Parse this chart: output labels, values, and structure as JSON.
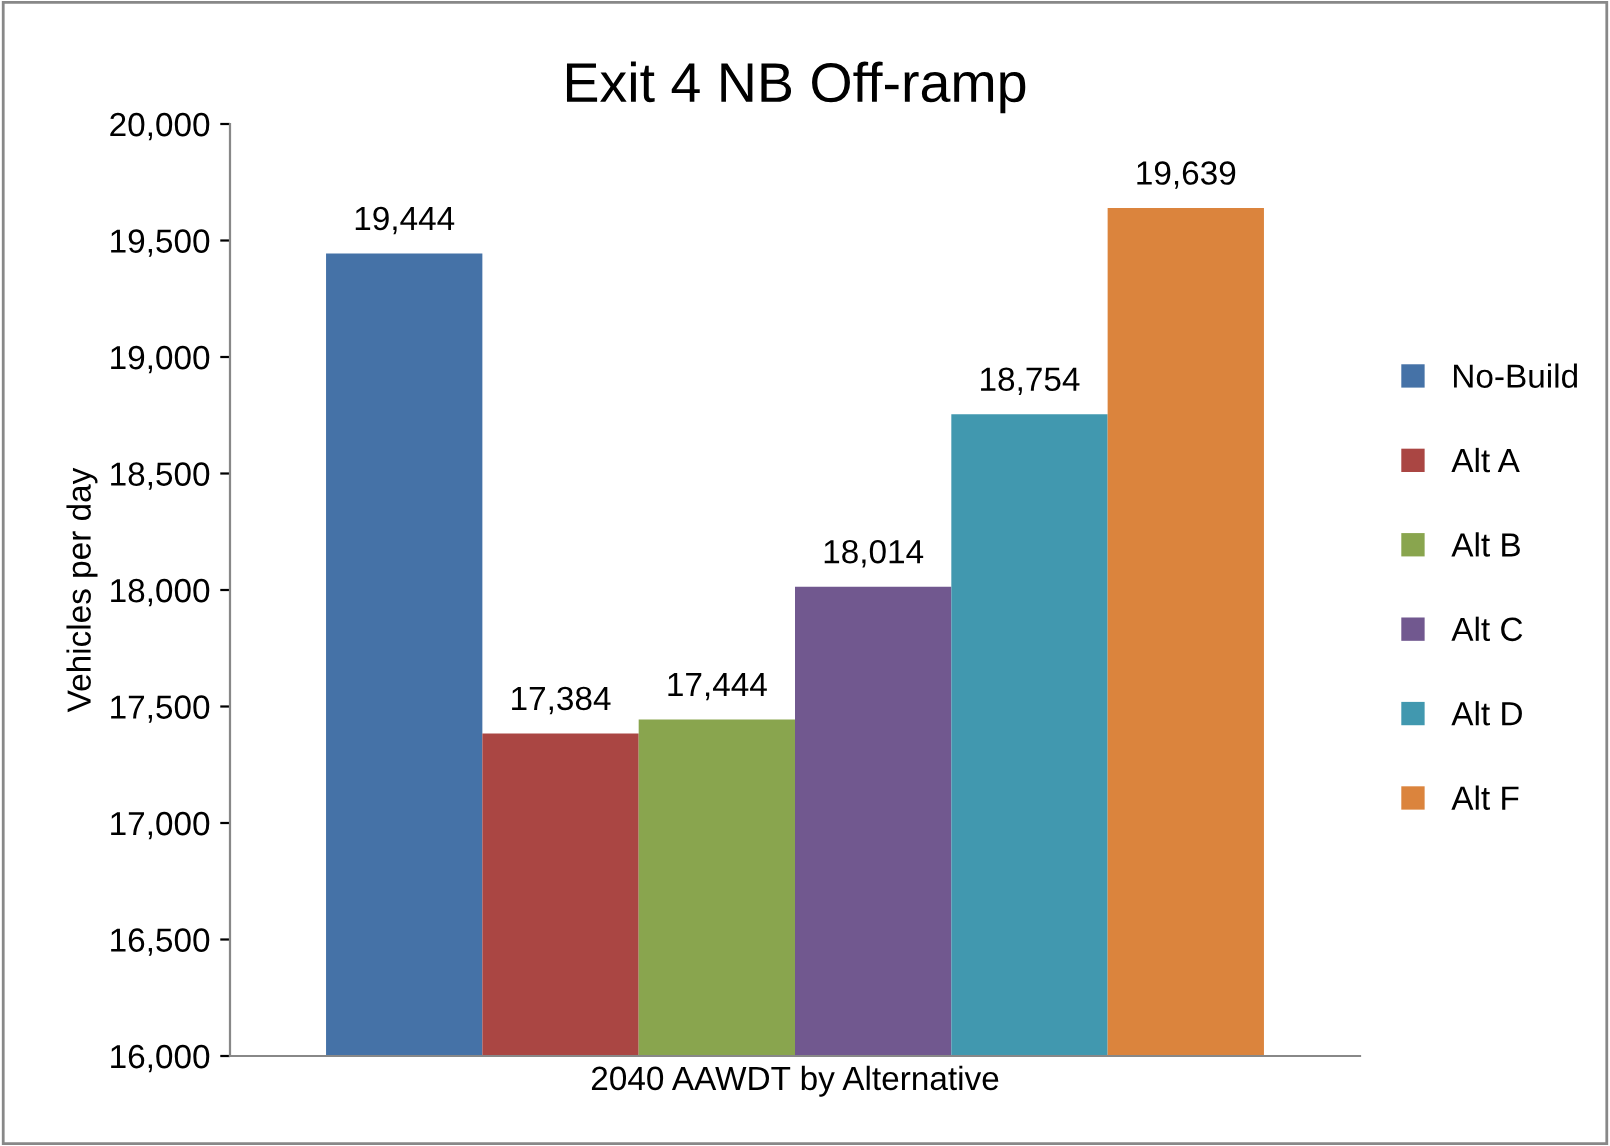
{
  "chart_data": {
    "type": "bar",
    "title": "Exit 4 NB Off-ramp",
    "ylabel": "Vehicles per day",
    "categories": [
      "2040 AAWDT by Alternative"
    ],
    "series": [
      {
        "name": "No-Build",
        "color": "#4572a7",
        "values": [
          19444
        ],
        "value_labels": [
          "19,444"
        ]
      },
      {
        "name": "Alt A",
        "color": "#aa4643",
        "values": [
          17384
        ],
        "value_labels": [
          "17,384"
        ]
      },
      {
        "name": "Alt B",
        "color": "#89a54e",
        "values": [
          17444
        ],
        "value_labels": [
          "17,444"
        ]
      },
      {
        "name": "Alt C",
        "color": "#71588f",
        "values": [
          18014
        ],
        "value_labels": [
          "18,014"
        ]
      },
      {
        "name": "Alt D",
        "color": "#4198af",
        "values": [
          18754
        ],
        "value_labels": [
          "18,754"
        ]
      },
      {
        "name": "Alt F",
        "color": "#db843d",
        "values": [
          19639
        ],
        "value_labels": [
          "19,639"
        ]
      }
    ],
    "ylim": [
      16000,
      20000
    ],
    "yticks": [
      {
        "value": 16000,
        "label": "16,000"
      },
      {
        "value": 16500,
        "label": "16,500"
      },
      {
        "value": 17000,
        "label": "17,000"
      },
      {
        "value": 17500,
        "label": "17,500"
      },
      {
        "value": 18000,
        "label": "18,000"
      },
      {
        "value": 18500,
        "label": "18,500"
      },
      {
        "value": 19000,
        "label": "19,000"
      },
      {
        "value": 19500,
        "label": "19,500"
      },
      {
        "value": 20000,
        "label": "20,000"
      }
    ],
    "grid": false,
    "legend": "right"
  }
}
